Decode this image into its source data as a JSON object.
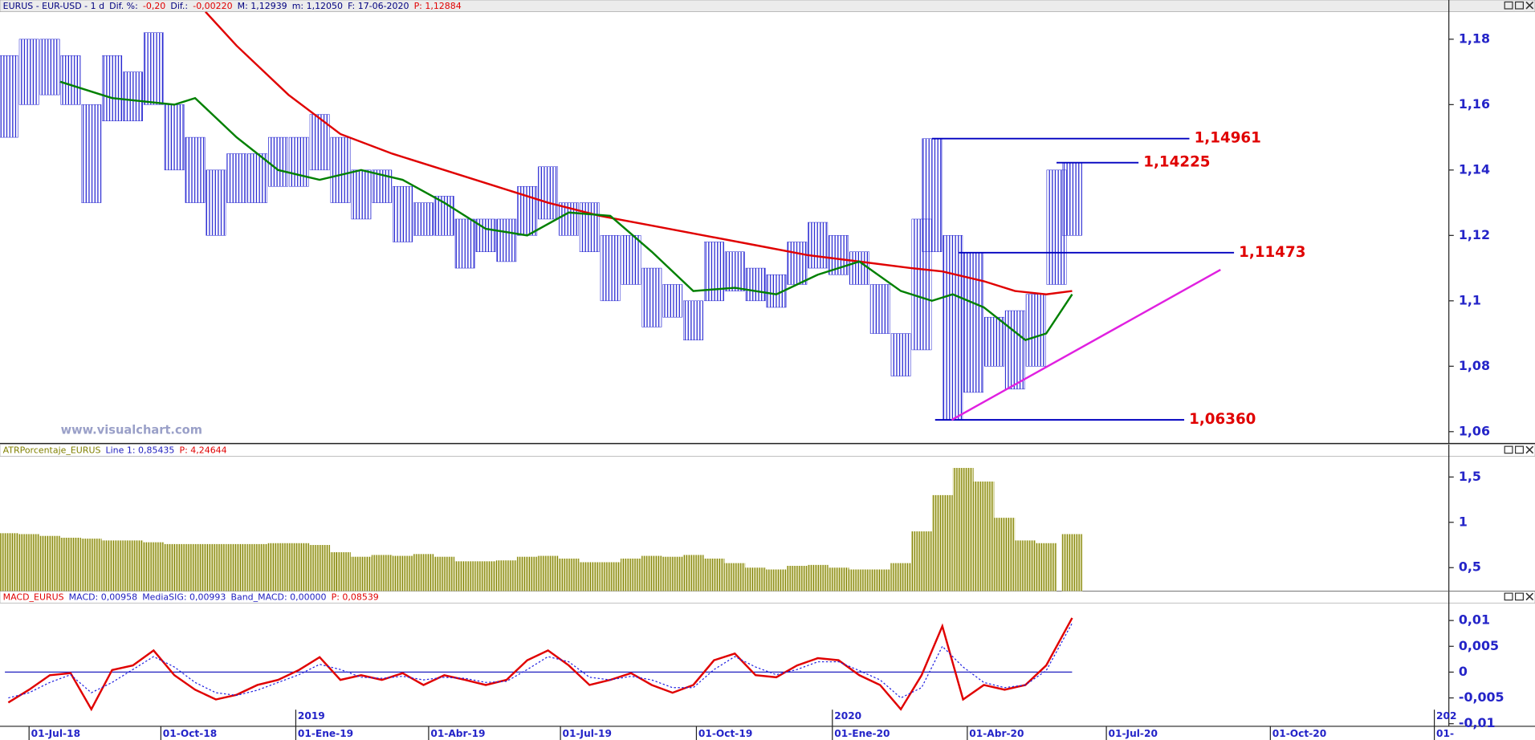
{
  "chart_data": [
    {
      "type": "hilo",
      "header": [
        {
          "text": "EURUS - EUR-USD - 1 d",
          "color": "#000080"
        },
        {
          "text": "Dif. %:",
          "color": "#000080"
        },
        {
          "text": "-0,20",
          "color": "#e00000"
        },
        {
          "text": "Dif.:",
          "color": "#000080"
        },
        {
          "text": "-0,00220",
          "color": "#e00000"
        },
        {
          "text": "M: 1,12939",
          "color": "#000080"
        },
        {
          "text": "m: 1,12050",
          "color": "#000080"
        },
        {
          "text": "F: 17-06-2020",
          "color": "#000080"
        },
        {
          "text": "P: 1,12884",
          "color": "#e00000"
        }
      ],
      "watermark": "www.visualchart.com",
      "color": "#2020d0",
      "xlim": [
        -2.8,
        136.8
      ],
      "x": [
        -2,
        0,
        2,
        4,
        6,
        8,
        10,
        12,
        14,
        16,
        18,
        20,
        22,
        24,
        26,
        28,
        30,
        32,
        34,
        36,
        38,
        40,
        42,
        44,
        46,
        48,
        50,
        52,
        54,
        56,
        58,
        60,
        62,
        64,
        66,
        68,
        70,
        72,
        74,
        76,
        78,
        80,
        82,
        84,
        86,
        87,
        89,
        91,
        93,
        95,
        97,
        99,
        100.5
      ],
      "high": [
        1.175,
        1.18,
        1.18,
        1.175,
        1.16,
        1.175,
        1.17,
        1.182,
        1.16,
        1.15,
        1.14,
        1.145,
        1.145,
        1.15,
        1.15,
        1.157,
        1.15,
        1.14,
        1.14,
        1.135,
        1.13,
        1.132,
        1.125,
        1.125,
        1.125,
        1.135,
        1.141,
        1.13,
        1.13,
        1.12,
        1.12,
        1.11,
        1.105,
        1.1,
        1.118,
        1.115,
        1.11,
        1.108,
        1.118,
        1.124,
        1.12,
        1.115,
        1.105,
        1.09,
        1.125,
        1.1496,
        1.12,
        1.1147,
        1.095,
        1.097,
        1.102,
        1.14,
        1.1423
      ],
      "low": [
        1.15,
        1.16,
        1.163,
        1.16,
        1.13,
        1.155,
        1.155,
        1.16,
        1.14,
        1.13,
        1.12,
        1.13,
        1.13,
        1.135,
        1.135,
        1.14,
        1.13,
        1.125,
        1.13,
        1.118,
        1.12,
        1.12,
        1.11,
        1.115,
        1.112,
        1.12,
        1.125,
        1.12,
        1.115,
        1.1,
        1.105,
        1.092,
        1.095,
        1.088,
        1.1,
        1.103,
        1.1,
        1.098,
        1.105,
        1.11,
        1.108,
        1.105,
        1.09,
        1.077,
        1.085,
        1.115,
        1.0636,
        1.072,
        1.08,
        1.073,
        1.08,
        1.105,
        1.12
      ],
      "lines": [
        {
          "color": "#e00000",
          "x": [
            17,
            20,
            25,
            30,
            35,
            40,
            45,
            50,
            55,
            60,
            65,
            70,
            75,
            80,
            85,
            88,
            92,
            95,
            98,
            100.5
          ],
          "values": [
            1.1884,
            1.178,
            1.163,
            1.151,
            1.145,
            1.14,
            1.135,
            1.13,
            1.126,
            1.123,
            1.12,
            1.117,
            1.114,
            1.112,
            1.11,
            1.109,
            1.106,
            1.103,
            1.102,
            1.103
          ]
        },
        {
          "color": "#008000",
          "x": [
            3,
            8,
            14,
            16,
            20,
            24,
            28,
            32,
            36,
            40,
            44,
            48,
            52,
            56,
            60,
            64,
            68,
            72,
            76,
            80,
            84,
            87,
            89,
            92,
            96,
            98,
            100.5
          ],
          "values": [
            1.167,
            1.162,
            1.16,
            1.162,
            1.15,
            1.14,
            1.137,
            1.14,
            1.137,
            1.13,
            1.122,
            1.12,
            1.127,
            1.126,
            1.115,
            1.103,
            1.104,
            1.102,
            1.108,
            1.112,
            1.103,
            1.1,
            1.102,
            1.098,
            1.088,
            1.09,
            1.102
          ]
        }
      ],
      "levels": [
        {
          "value": 1.14961,
          "label": "1,14961",
          "x": [
            87,
            111.8
          ]
        },
        {
          "value": 1.14225,
          "label": "1,14225",
          "x": [
            99,
            106.9
          ]
        },
        {
          "value": 1.11473,
          "label": "1,11473",
          "x": [
            89.6,
            116.1
          ]
        },
        {
          "value": 1.0636,
          "label": "1,06360",
          "x": [
            87.3,
            111.3
          ]
        }
      ],
      "level_color": "#0000c0",
      "label_color": "#e00000",
      "trendline": {
        "color": "#e020e0",
        "x": [
          88.9,
          114.8
        ],
        "values": [
          1.0636,
          1.1095
        ]
      },
      "ylim": [
        1.0564,
        1.1884
      ],
      "yticks": [
        {
          "value": 1.06,
          "label": "1,06"
        },
        {
          "value": 1.08,
          "label": "1,08"
        },
        {
          "value": 1.1,
          "label": "1,1"
        },
        {
          "value": 1.12,
          "label": "1,12"
        },
        {
          "value": 1.14,
          "label": "1,14"
        },
        {
          "value": 1.16,
          "label": "1,16"
        },
        {
          "value": 1.18,
          "label": "1,18"
        }
      ]
    },
    {
      "type": "bar",
      "header": [
        {
          "text": "ATRPorcentaje_EURUS",
          "color": "#808000"
        },
        {
          "text": "Line 1: 0,85435",
          "color": "#2020c0"
        },
        {
          "text": "P: 4,24644",
          "color": "#e00000"
        }
      ],
      "color": "#808000",
      "xlim": [
        -2.8,
        136.8
      ],
      "x": [
        -2,
        0,
        2,
        4,
        6,
        8,
        10,
        12,
        14,
        16,
        18,
        20,
        22,
        24,
        26,
        28,
        30,
        32,
        34,
        36,
        38,
        40,
        42,
        44,
        46,
        48,
        50,
        52,
        54,
        56,
        58,
        60,
        62,
        64,
        66,
        68,
        70,
        72,
        74,
        76,
        78,
        80,
        82,
        84,
        86,
        88,
        90,
        92,
        94,
        96,
        98,
        100.5
      ],
      "values": [
        0.88,
        0.87,
        0.85,
        0.83,
        0.82,
        0.8,
        0.8,
        0.78,
        0.76,
        0.76,
        0.76,
        0.76,
        0.76,
        0.77,
        0.77,
        0.75,
        0.67,
        0.62,
        0.64,
        0.63,
        0.65,
        0.62,
        0.57,
        0.57,
        0.58,
        0.62,
        0.63,
        0.6,
        0.56,
        0.56,
        0.6,
        0.63,
        0.62,
        0.64,
        0.6,
        0.55,
        0.5,
        0.48,
        0.52,
        0.53,
        0.5,
        0.48,
        0.48,
        0.55,
        0.9,
        1.3,
        1.6,
        1.45,
        1.05,
        0.8,
        0.77,
        0.87
      ],
      "ylim": [
        0.24,
        1.73
      ],
      "yticks": [
        {
          "value": 0.5,
          "label": "0,5"
        },
        1,
        {
          "value": 1.5,
          "label": "1,5"
        }
      ]
    },
    {
      "type": "line",
      "header": [
        {
          "text": "MACD_EURUS",
          "color": "#e00000"
        },
        {
          "text": "MACD: 0,00958",
          "color": "#2020c0"
        },
        {
          "text": "MediaSIG: 0,00993",
          "color": "#2020c0"
        },
        {
          "text": "Band_MACD: 0,00000",
          "color": "#2020c0"
        },
        {
          "text": "P: 0,08539",
          "color": "#e00000"
        }
      ],
      "xlim": [
        -2.8,
        136.8
      ],
      "x": [
        -2,
        0,
        2,
        4,
        6,
        8,
        10,
        12,
        14,
        16,
        18,
        20,
        22,
        24,
        26,
        28,
        30,
        32,
        34,
        36,
        38,
        40,
        42,
        44,
        46,
        48,
        50,
        52,
        54,
        56,
        58,
        60,
        62,
        64,
        66,
        68,
        70,
        72,
        74,
        76,
        78,
        80,
        82,
        84,
        86,
        88,
        90,
        92,
        94,
        96,
        98,
        100.5
      ],
      "series": [
        {
          "color": "#e00000",
          "values": [
            -0.0059,
            -0.0034,
            -0.0006,
            -0.0002,
            -0.0072,
            0.0004,
            0.0013,
            0.0042,
            -0.0006,
            -0.0034,
            -0.0053,
            -0.0044,
            -0.0025,
            -0.0015,
            0.0004,
            0.0029,
            -0.0015,
            -0.0006,
            -0.0015,
            -0.0002,
            -0.0025,
            -0.0006,
            -0.0015,
            -0.0025,
            -0.0015,
            0.0023,
            0.0042,
            0.0013,
            -0.0025,
            -0.0015,
            -0.0002,
            -0.0025,
            -0.004,
            -0.0025,
            0.0023,
            0.0036,
            -0.0006,
            -0.001,
            0.0013,
            0.0027,
            0.0023,
            -0.0006,
            -0.0025,
            -0.0072,
            -0.0006,
            0.0089,
            -0.0053,
            -0.0025,
            -0.0034,
            -0.0025,
            0.0013,
            0.0105
          ]
        },
        {
          "color": "#2020e0",
          "dashed": true,
          "values": [
            -0.005,
            -0.004,
            -0.002,
            -0.0005,
            -0.004,
            -0.002,
            0.0005,
            0.003,
            0.001,
            -0.002,
            -0.004,
            -0.0045,
            -0.0035,
            -0.002,
            -0.0005,
            0.0015,
            0.0005,
            -0.001,
            -0.0012,
            -0.0008,
            -0.0015,
            -0.001,
            -0.0012,
            -0.002,
            -0.0018,
            0.0005,
            0.003,
            0.002,
            -0.001,
            -0.0015,
            -0.0008,
            -0.0015,
            -0.003,
            -0.003,
            0.0005,
            0.003,
            0.001,
            -0.0005,
            0.0005,
            0.002,
            0.002,
            0.0003,
            -0.0015,
            -0.005,
            -0.003,
            0.005,
            0.001,
            -0.002,
            -0.003,
            -0.0025,
            0.0003,
            0.0095
          ]
        }
      ],
      "band": 0,
      "band_color": "#2020c0",
      "ylim": [
        -0.0105,
        0.0134
      ],
      "yticks": [
        {
          "value": 0.01,
          "label": "0,01"
        },
        {
          "value": 0.005,
          "label": "0,005"
        },
        0,
        {
          "value": -0.005,
          "label": "-0,005"
        },
        {
          "value": -0.01,
          "label": "-0,01"
        }
      ],
      "xticks": [
        {
          "value": 0,
          "label": "01-Jul-18"
        },
        {
          "value": 12.7,
          "label": "01-Oct-18"
        },
        {
          "value": 25.7,
          "label": "01-Ene-19"
        },
        {
          "value": 38.5,
          "label": "01-Abr-19"
        },
        {
          "value": 51.2,
          "label": "01-Jul-19"
        },
        {
          "value": 64.3,
          "label": "01-Oct-19"
        },
        {
          "value": 77.4,
          "label": "01-Ene-20"
        },
        {
          "value": 90.4,
          "label": "01-Abr-20"
        },
        {
          "value": 103.8,
          "label": "01-Jul-20"
        },
        {
          "value": 119.6,
          "label": "01-Oct-20"
        },
        {
          "value": 135.4,
          "label": "01-"
        }
      ],
      "xticks_year": [
        {
          "value": 25.7,
          "label": "2019"
        },
        {
          "value": 77.4,
          "label": "2020"
        },
        {
          "value": 135.4,
          "label": "202"
        }
      ]
    }
  ]
}
